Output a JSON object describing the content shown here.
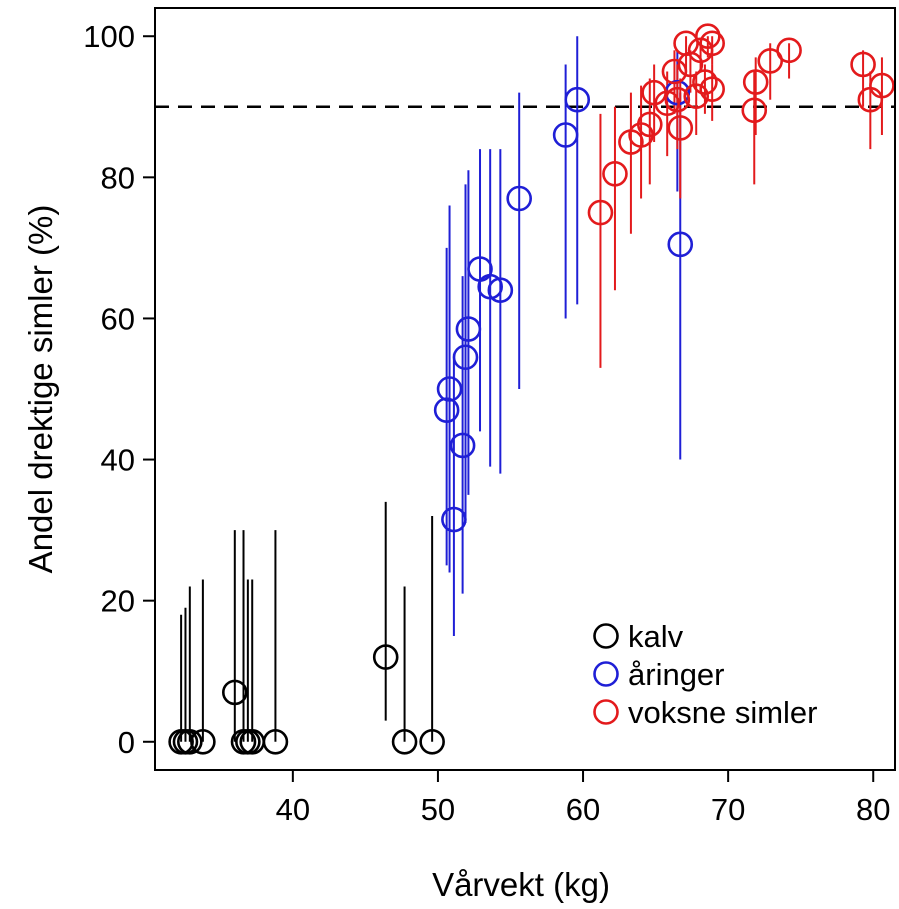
{
  "chart_data": {
    "type": "scatter",
    "title": "",
    "xlabel": "Vårvekt (kg)",
    "ylabel": "Andel drektige simler (%)",
    "xlim": [
      30.5,
      81.5
    ],
    "ylim": [
      -4,
      104
    ],
    "xticks": [
      40,
      50,
      60,
      70,
      80
    ],
    "yticks": [
      0,
      20,
      40,
      60,
      80,
      100
    ],
    "reference_line": {
      "y": 90,
      "style": "dashed",
      "color": "#000000"
    },
    "legend": {
      "position": "bottom-right"
    },
    "series": [
      {
        "name": "kalv",
        "color": "#000000",
        "points": [
          {
            "x": 32.3,
            "y": 0,
            "lo": 0,
            "hi": 18
          },
          {
            "x": 32.6,
            "y": 0,
            "lo": 0,
            "hi": 19
          },
          {
            "x": 32.9,
            "y": 0,
            "lo": 0,
            "hi": 22
          },
          {
            "x": 33.8,
            "y": 0,
            "lo": 0,
            "hi": 23
          },
          {
            "x": 36.0,
            "y": 7,
            "lo": 0,
            "hi": 30
          },
          {
            "x": 36.6,
            "y": 0,
            "lo": 0,
            "hi": 30
          },
          {
            "x": 36.9,
            "y": 0,
            "lo": 0,
            "hi": 23
          },
          {
            "x": 37.2,
            "y": 0,
            "lo": 0,
            "hi": 23
          },
          {
            "x": 38.8,
            "y": 0,
            "lo": 0,
            "hi": 30
          },
          {
            "x": 46.4,
            "y": 12,
            "lo": 3,
            "hi": 34
          },
          {
            "x": 47.7,
            "y": 0,
            "lo": 0,
            "hi": 22
          },
          {
            "x": 49.6,
            "y": 0,
            "lo": 0,
            "hi": 32
          }
        ]
      },
      {
        "name": "åringer",
        "color": "#1f1fd6",
        "points": [
          {
            "x": 50.6,
            "y": 47,
            "lo": 25,
            "hi": 70
          },
          {
            "x": 50.8,
            "y": 50,
            "lo": 24,
            "hi": 76
          },
          {
            "x": 51.1,
            "y": 31.5,
            "lo": 15,
            "hi": 55
          },
          {
            "x": 51.7,
            "y": 42,
            "lo": 21,
            "hi": 66
          },
          {
            "x": 51.9,
            "y": 54.5,
            "lo": 31,
            "hi": 79
          },
          {
            "x": 52.1,
            "y": 58.5,
            "lo": 35,
            "hi": 81
          },
          {
            "x": 52.9,
            "y": 67,
            "lo": 44,
            "hi": 84
          },
          {
            "x": 53.6,
            "y": 64.5,
            "lo": 39,
            "hi": 84
          },
          {
            "x": 54.3,
            "y": 64,
            "lo": 38,
            "hi": 84
          },
          {
            "x": 55.6,
            "y": 77,
            "lo": 50,
            "hi": 92
          },
          {
            "x": 58.8,
            "y": 86,
            "lo": 60,
            "hi": 96
          },
          {
            "x": 59.6,
            "y": 91,
            "lo": 62,
            "hi": 100
          },
          {
            "x": 66.5,
            "y": 92,
            "lo": 78,
            "hi": 98
          },
          {
            "x": 66.7,
            "y": 70.5,
            "lo": 40,
            "hi": 92
          }
        ]
      },
      {
        "name": "voksne simler",
        "color": "#e31a1c",
        "points": [
          {
            "x": 61.2,
            "y": 75,
            "lo": 53,
            "hi": 89
          },
          {
            "x": 62.2,
            "y": 80.5,
            "lo": 64,
            "hi": 90
          },
          {
            "x": 63.3,
            "y": 85,
            "lo": 72,
            "hi": 92
          },
          {
            "x": 64.0,
            "y": 86,
            "lo": 77,
            "hi": 93
          },
          {
            "x": 64.6,
            "y": 87.5,
            "lo": 79,
            "hi": 94
          },
          {
            "x": 64.9,
            "y": 92,
            "lo": 85,
            "hi": 96
          },
          {
            "x": 65.8,
            "y": 90.5,
            "lo": 83,
            "hi": 95
          },
          {
            "x": 66.3,
            "y": 95,
            "lo": 89,
            "hi": 98
          },
          {
            "x": 66.5,
            "y": 91,
            "lo": 84,
            "hi": 96
          },
          {
            "x": 66.7,
            "y": 87,
            "lo": 77,
            "hi": 94
          },
          {
            "x": 67.1,
            "y": 99,
            "lo": 95,
            "hi": 100
          },
          {
            "x": 67.4,
            "y": 96,
            "lo": 92,
            "hi": 98
          },
          {
            "x": 67.8,
            "y": 91.5,
            "lo": 86,
            "hi": 95
          },
          {
            "x": 68.1,
            "y": 98,
            "lo": 95,
            "hi": 99
          },
          {
            "x": 68.4,
            "y": 93.5,
            "lo": 89,
            "hi": 96
          },
          {
            "x": 68.6,
            "y": 100,
            "lo": 97,
            "hi": 100
          },
          {
            "x": 68.9,
            "y": 99,
            "lo": 96,
            "hi": 100
          },
          {
            "x": 68.9,
            "y": 92.5,
            "lo": 88,
            "hi": 96
          },
          {
            "x": 71.8,
            "y": 89.5,
            "lo": 79,
            "hi": 95
          },
          {
            "x": 71.9,
            "y": 93.5,
            "lo": 86,
            "hi": 97
          },
          {
            "x": 72.9,
            "y": 96.5,
            "lo": 91,
            "hi": 99
          },
          {
            "x": 74.2,
            "y": 98,
            "lo": 94,
            "hi": 99
          },
          {
            "x": 79.3,
            "y": 96,
            "lo": 90,
            "hi": 98
          },
          {
            "x": 79.8,
            "y": 91,
            "lo": 84,
            "hi": 95
          },
          {
            "x": 80.6,
            "y": 93,
            "lo": 86,
            "hi": 97
          }
        ]
      }
    ]
  }
}
